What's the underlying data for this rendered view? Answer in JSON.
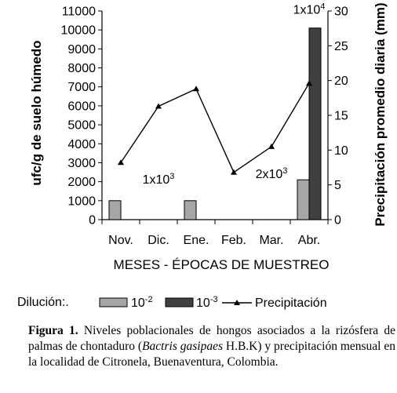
{
  "chart_data": {
    "type": "bar",
    "categories": [
      "Nov.",
      "Dic.",
      "Ene.",
      "Feb.",
      "Mar.",
      "Abr."
    ],
    "xlabel": "MESES - ÉPOCAS DE MUESTREO",
    "ylabel": "ufc/g de suelo húmedo",
    "y2label": "Precipitación promedio diaria (mm)",
    "ylim": [
      0,
      11000
    ],
    "y2lim": [
      0,
      30
    ],
    "yticks": [
      "0",
      "1000",
      "2000",
      "3000",
      "4000",
      "5000",
      "6000",
      "7000",
      "8000",
      "9000",
      "10000",
      "11000"
    ],
    "y2ticks": [
      "0",
      "5",
      "10",
      "15",
      "20",
      "25",
      "30"
    ],
    "series": [
      {
        "name": "10",
        "exp": "-2",
        "type": "bar",
        "color": "#a6a6a6",
        "values": [
          1000,
          0,
          1000,
          0,
          0,
          2100
        ]
      },
      {
        "name": "10",
        "exp": "-3",
        "type": "bar",
        "color": "#404040",
        "values": [
          0,
          0,
          0,
          0,
          0,
          10100
        ]
      },
      {
        "name": "Precipitación",
        "type": "line",
        "axis": "right",
        "color": "#000000",
        "values": [
          8.2,
          16.3,
          18.8,
          6.8,
          10.5,
          19.6
        ]
      }
    ],
    "annotations": [
      {
        "base": "1x10",
        "exp": "3",
        "category": "Dic.",
        "value": 1900
      },
      {
        "base": "2x10",
        "exp": "3",
        "category": "Mar.",
        "value": 2200
      },
      {
        "base": "1x10",
        "exp": "4",
        "category": "Abr.",
        "value": 10850
      }
    ],
    "legend_title": "Dilución:.",
    "grid": false,
    "legend_position": "bottom"
  },
  "caption": {
    "label": "Figura 1.",
    "text_before": " Niveles poblacionales de hongos asociados a la rizósfera de palmas de chontaduro (",
    "italic": "Bactris gasipaes",
    "text_after": " H.B.K) y precipitación mensual en la localidad de Citronela, Buenaventura, Colombia."
  }
}
